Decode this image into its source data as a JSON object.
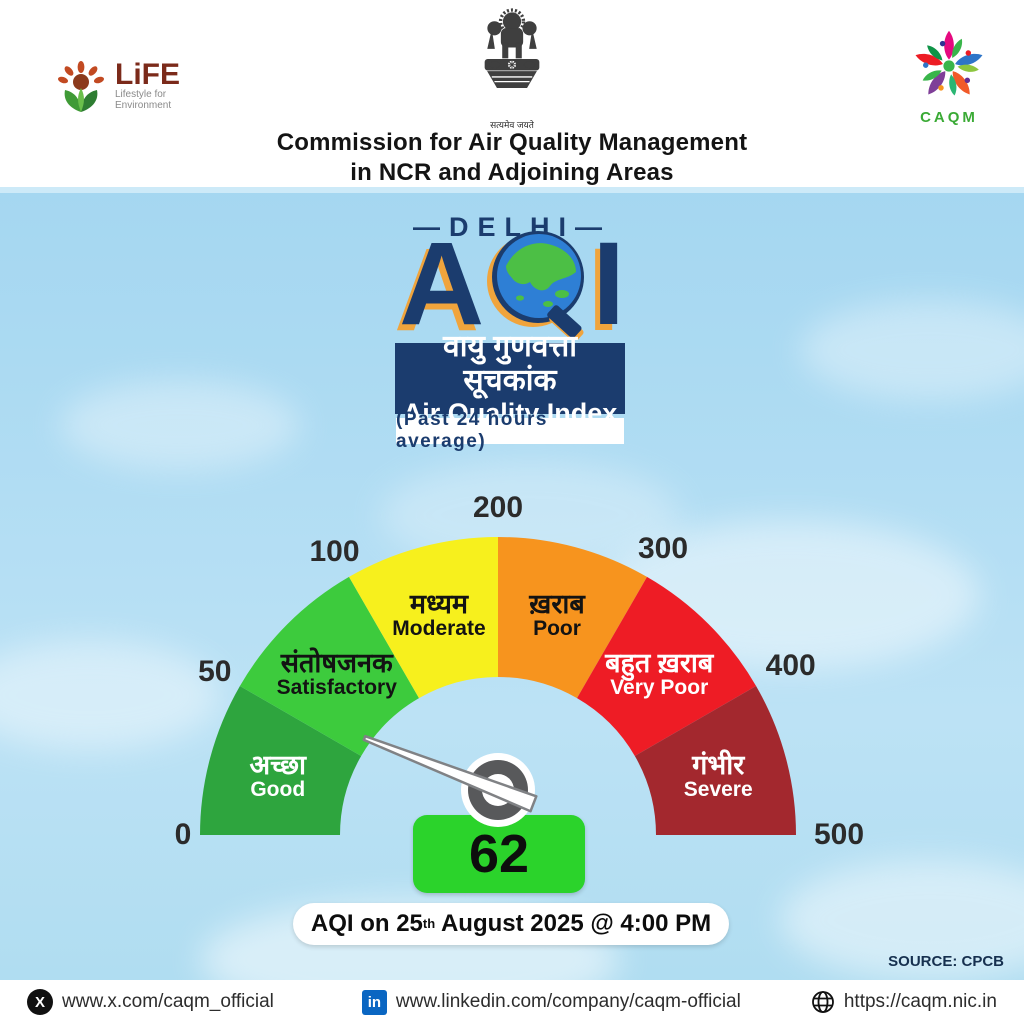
{
  "header": {
    "life_logo": {
      "word": "LiFE",
      "sub_line1": "Lifestyle for",
      "sub_line2": "Environment"
    },
    "emblem_motto": "सत्यमेव जयते",
    "title_line1": "Commission for Air Quality Management",
    "title_line2": "in NCR and Adjoining Areas",
    "caqm_logo_word": "CAQM"
  },
  "logo": {
    "dash_left": "—",
    "city": "DELHI",
    "dash_right": "—",
    "acronym_a": "A",
    "acronym_i": "I",
    "hindi_name": "वायु गुणवत्ता सूचकांक",
    "english_name": "Air Quality Index",
    "subtitle": "(Past 24 hours average)"
  },
  "chart_data": {
    "type": "gauge",
    "min": 0,
    "max": 500,
    "value": 62,
    "center": [
      498,
      835
    ],
    "outer_radius": 298,
    "inner_radius": 158,
    "label_radius": 228,
    "ticks": [
      {
        "value": "0",
        "angle": 180,
        "radius": 315
      },
      {
        "value": "50",
        "angle": 150,
        "radius": 327
      },
      {
        "value": "100",
        "angle": 120,
        "radius": 327
      },
      {
        "value": "200",
        "angle": 90,
        "radius": 327
      },
      {
        "value": "300",
        "angle": 60,
        "radius": 330
      },
      {
        "value": "400",
        "angle": 30,
        "radius": 338
      },
      {
        "value": "500",
        "angle": 0,
        "radius": 341
      }
    ],
    "categories": [
      {
        "range": [
          0,
          50
        ],
        "label_hi": "अच्छा",
        "label_en": "Good",
        "color": "#2ea53e",
        "text_color": "#ffffff",
        "start_angle": 180,
        "end_angle": 150
      },
      {
        "range": [
          50,
          100
        ],
        "label_hi": "संतोषजनक",
        "label_en": "Satisfactory",
        "color": "#3dcb3d",
        "text_color": "#131313",
        "start_angle": 150,
        "end_angle": 120
      },
      {
        "range": [
          100,
          200
        ],
        "label_hi": "मध्यम",
        "label_en": "Moderate",
        "color": "#f7f01d",
        "text_color": "#131313",
        "start_angle": 120,
        "end_angle": 90
      },
      {
        "range": [
          200,
          300
        ],
        "label_hi": "ख़राब",
        "label_en": "Poor",
        "color": "#f7941e",
        "text_color": "#131313",
        "start_angle": 90,
        "end_angle": 60
      },
      {
        "range": [
          300,
          400
        ],
        "label_hi": "बहुत ख़राब",
        "label_en": "Very Poor",
        "color": "#ee1c25",
        "text_color": "#ffffff",
        "start_angle": 60,
        "end_angle": 30
      },
      {
        "range": [
          400,
          500
        ],
        "label_hi": "गंभीर",
        "label_en": "Severe",
        "color": "#a3282e",
        "text_color": "#ffffff",
        "start_angle": 30,
        "end_angle": 0
      }
    ],
    "needle": {
      "angle_deg": 144,
      "tip_radius": 165,
      "hub_offset": [
        0,
        -45
      ],
      "color": "#ffffff",
      "outline": "#808285",
      "hub_color": "#58595b"
    }
  },
  "reading": {
    "value": "62",
    "caption_prefix": "AQI on 25",
    "caption_sup": "th",
    "caption_suffix": " August 2025 @ 4:00 PM"
  },
  "source": "SOURCE: CPCB",
  "footer": {
    "x_label": "www.x.com/caqm_official",
    "x_glyph": "X",
    "linkedin_label": "www.linkedin.com/company/caqm-official",
    "linkedin_glyph": "in",
    "web_label": "https://caqm.nic.in"
  }
}
